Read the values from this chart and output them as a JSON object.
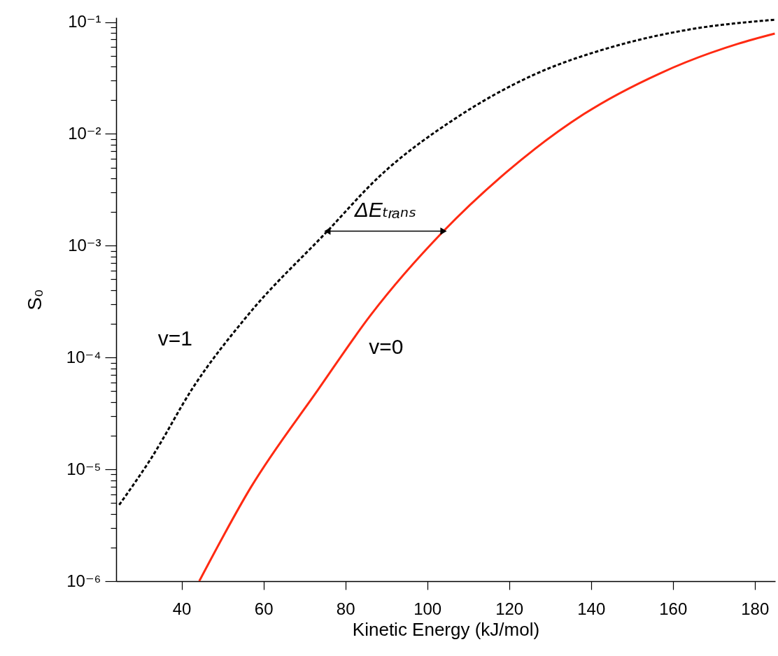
{
  "chart_data": {
    "type": "line",
    "xlabel": "Kinetic Energy (kJ/mol)",
    "ylabel": "S₀",
    "log": "y",
    "xlim": [
      24,
      185
    ],
    "xticks": [
      40,
      60,
      80,
      100,
      120,
      140,
      160,
      180
    ],
    "ylim": [
      1e-06,
      0.11
    ],
    "yticks": [
      {
        "value": 0.1,
        "label": "10⁻¹"
      },
      {
        "value": 0.09,
        "label": null
      },
      {
        "value": 0.08,
        "label": null
      },
      {
        "value": 0.07,
        "label": null
      },
      {
        "value": 0.06,
        "label": null
      },
      {
        "value": 0.05,
        "label": null
      },
      {
        "value": 0.04,
        "label": null
      },
      {
        "value": 0.03,
        "label": null
      },
      {
        "value": 0.02,
        "label": null
      },
      {
        "value": 0.01,
        "label": "10⁻²"
      },
      {
        "value": 0.009,
        "label": null
      },
      {
        "value": 0.008,
        "label": null
      },
      {
        "value": 0.007,
        "label": null
      },
      {
        "value": 0.006,
        "label": null
      },
      {
        "value": 0.005,
        "label": null
      },
      {
        "value": 0.004,
        "label": null
      },
      {
        "value": 0.003,
        "label": null
      },
      {
        "value": 0.002,
        "label": null
      },
      {
        "value": 0.001,
        "label": "10⁻³"
      },
      {
        "value": 0.0009,
        "label": null
      },
      {
        "value": 0.0008,
        "label": null
      },
      {
        "value": 0.0007,
        "label": null
      },
      {
        "value": 0.0006,
        "label": null
      },
      {
        "value": 0.0005,
        "label": null
      },
      {
        "value": 0.0004,
        "label": null
      },
      {
        "value": 0.0003,
        "label": null
      },
      {
        "value": 0.0002,
        "label": null
      },
      {
        "value": 0.0001,
        "label": "10⁻⁴"
      },
      {
        "value": 9e-05,
        "label": null
      },
      {
        "value": 8e-05,
        "label": null
      },
      {
        "value": 7e-05,
        "label": null
      },
      {
        "value": 6e-05,
        "label": null
      },
      {
        "value": 5e-05,
        "label": null
      },
      {
        "value": 4e-05,
        "label": null
      },
      {
        "value": 3e-05,
        "label": null
      },
      {
        "value": 2e-05,
        "label": null
      },
      {
        "value": 1e-05,
        "label": "10⁻⁵"
      },
      {
        "value": 9e-06,
        "label": null
      },
      {
        "value": 8e-06,
        "label": null
      },
      {
        "value": 7e-06,
        "label": null
      },
      {
        "value": 6e-06,
        "label": null
      },
      {
        "value": 5e-06,
        "label": null
      },
      {
        "value": 4e-06,
        "label": null
      },
      {
        "value": 3e-06,
        "label": null
      },
      {
        "value": 2e-06,
        "label": null
      },
      {
        "value": 1e-06,
        "label": "10⁻⁶"
      }
    ],
    "grid": false,
    "series": [
      {
        "name": "v=1",
        "color": "#000000",
        "line_style": "dotted",
        "x": [
          24.9,
          32.4,
          42.8,
          56.2,
          75.6,
          88.1,
          106.8,
          125.8,
          144.5,
          163.3,
          184.9
        ],
        "values": [
          4.9e-06,
          1.23e-05,
          5.4e-05,
          0.00024,
          0.00135,
          0.0041,
          0.0137,
          0.0335,
          0.059,
          0.085,
          0.105
        ]
      },
      {
        "name": "v=0",
        "color": "#ff2a12",
        "line_style": "solid",
        "x": [
          44.3,
          56.9,
          73.4,
          86.2,
          103.8,
          119.5,
          138.2,
          157,
          175.9,
          184.9
        ],
        "values": [
          1e-06,
          6.9e-06,
          5.2e-05,
          0.00024,
          0.00133,
          0.0046,
          0.015,
          0.035,
          0.064,
          0.079
        ]
      }
    ],
    "annotations": [
      "ΔEₜᵣₐₙₛ"
    ]
  }
}
